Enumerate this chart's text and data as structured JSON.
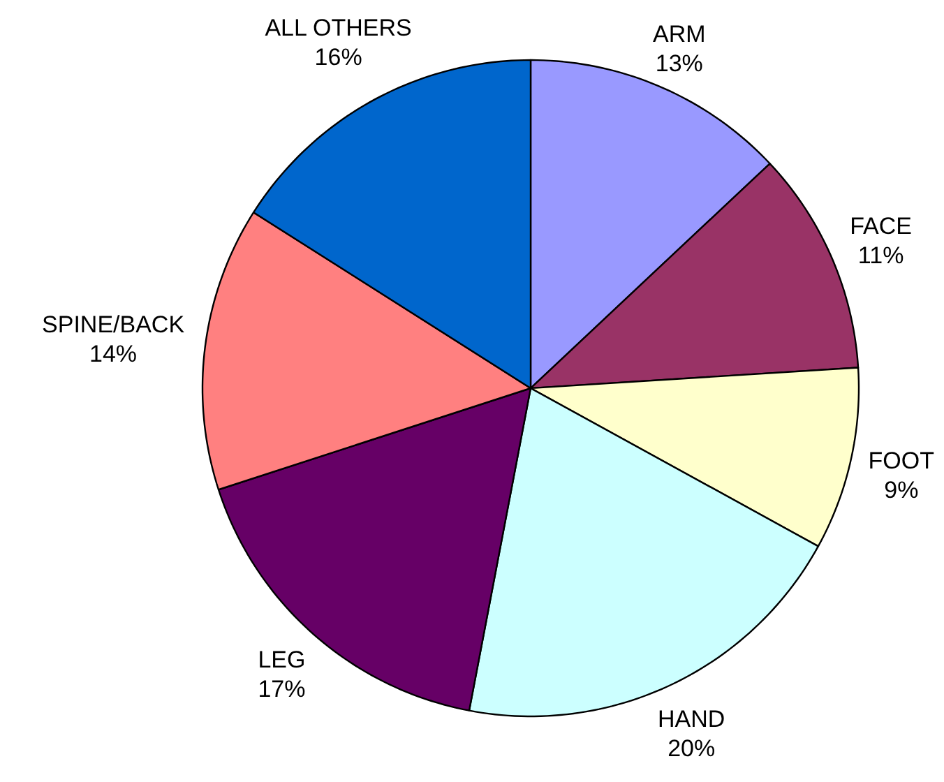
{
  "chart_data": {
    "type": "pie",
    "categories": [
      "ARM",
      "FACE",
      "FOOT",
      "HAND",
      "LEG",
      "SPINE/BACK",
      "ALL OTHERS"
    ],
    "values": [
      13,
      11,
      9,
      20,
      17,
      14,
      16
    ],
    "colors": [
      "#9999ff",
      "#993366",
      "#ffffcc",
      "#ccffff",
      "#660066",
      "#ff8080",
      "#0066cc"
    ],
    "value_labels": [
      "13%",
      "11%",
      "9%",
      "20%",
      "17%",
      "14%",
      "16%"
    ]
  }
}
